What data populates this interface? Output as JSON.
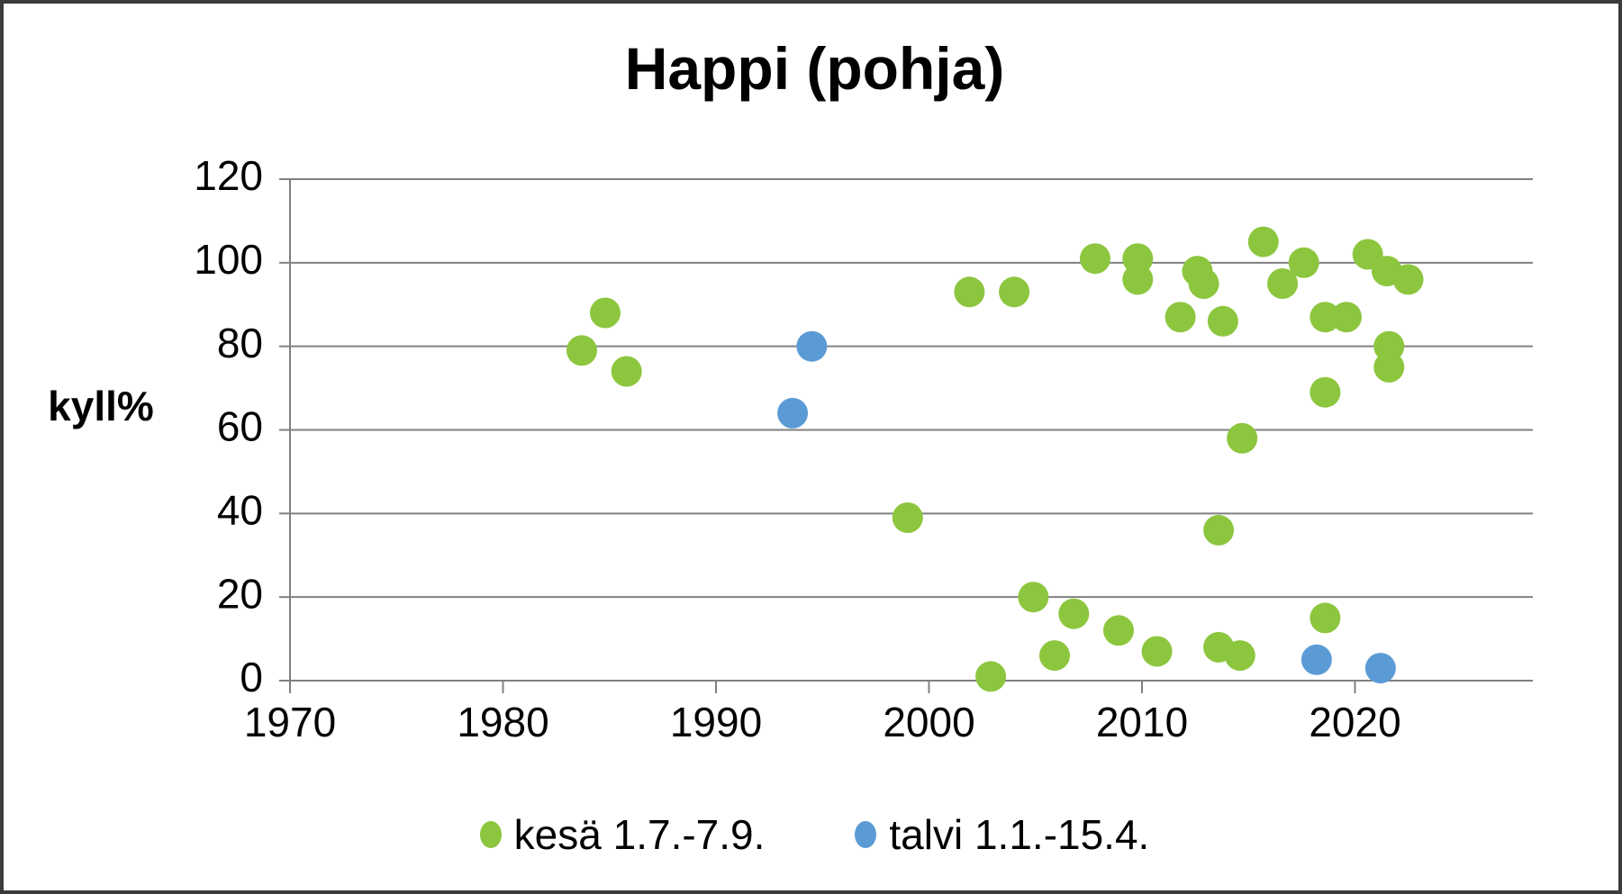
{
  "title": "Happi (pohja)",
  "y_axis": {
    "label": "kyll%",
    "ticks": [
      0,
      20,
      40,
      60,
      80,
      100,
      120
    ]
  },
  "x_axis": {
    "ticks": [
      1970,
      1980,
      1990,
      2000,
      2010,
      2020
    ]
  },
  "colors": {
    "summer": "#8CC63E",
    "winter": "#5B9BD5",
    "grid": "#808080",
    "text": "#000000"
  },
  "chart_data": {
    "type": "scatter",
    "title": "Happi (pohja)",
    "xlabel": "",
    "ylabel": "kyll%",
    "xlim": [
      1970,
      2028.4
    ],
    "ylim": [
      0,
      120
    ],
    "x_ticks": [
      1970,
      1980,
      1990,
      2000,
      2010,
      2020
    ],
    "y_ticks": [
      0,
      20,
      40,
      60,
      80,
      100,
      120
    ],
    "grid": true,
    "legend_position": "bottom",
    "series": [
      {
        "name": "kesä 1.7.-7.9.",
        "color": "#8CC63E",
        "points": [
          [
            1983.7,
            79
          ],
          [
            1984.8,
            88
          ],
          [
            1985.8,
            74
          ],
          [
            1999.0,
            39
          ],
          [
            2001.9,
            93
          ],
          [
            2002.9,
            1
          ],
          [
            2004.0,
            93
          ],
          [
            2004.9,
            20
          ],
          [
            2005.9,
            6
          ],
          [
            2006.8,
            16
          ],
          [
            2007.8,
            101
          ],
          [
            2008.9,
            12
          ],
          [
            2009.8,
            101
          ],
          [
            2009.8,
            96
          ],
          [
            2010.7,
            7
          ],
          [
            2011.8,
            87
          ],
          [
            2012.6,
            98
          ],
          [
            2012.9,
            95
          ],
          [
            2013.6,
            36
          ],
          [
            2013.6,
            8
          ],
          [
            2013.8,
            86
          ],
          [
            2014.6,
            6
          ],
          [
            2014.7,
            58
          ],
          [
            2015.7,
            105
          ],
          [
            2016.6,
            95
          ],
          [
            2017.6,
            100
          ],
          [
            2018.6,
            87
          ],
          [
            2018.6,
            69
          ],
          [
            2018.6,
            15
          ],
          [
            2019.6,
            87
          ],
          [
            2020.6,
            102
          ],
          [
            2021.5,
            98
          ],
          [
            2021.6,
            80
          ],
          [
            2021.6,
            75
          ],
          [
            2022.5,
            96
          ]
        ]
      },
      {
        "name": "talvi 1.1.-15.4.",
        "color": "#5B9BD5",
        "points": [
          [
            1993.6,
            64
          ],
          [
            1994.5,
            80
          ],
          [
            2018.2,
            5
          ],
          [
            2021.2,
            3
          ]
        ]
      }
    ]
  }
}
